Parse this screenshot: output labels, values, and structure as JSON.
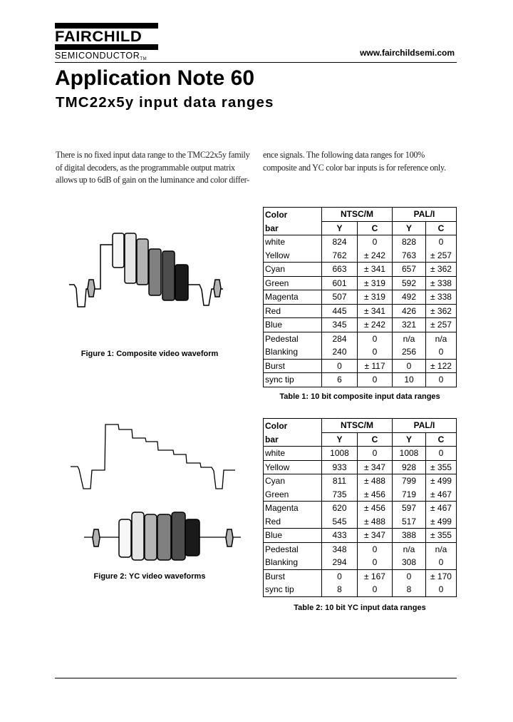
{
  "header": {
    "logo_name": "FAIRCHILD",
    "logo_sub": "SEMICONDUCTOR",
    "logo_tm": "TM",
    "url": "www.fairchildsemi.com"
  },
  "title": "Application Note 60",
  "subtitle": "TMC22x5y input data ranges",
  "paragraphs": [
    "There is no fixed input data range to the TMC22x5y family of digital decoders, as the programmable output matrix allows up to 6dB of gain on the luminance and color differ-",
    "ence signals. The following data ranges for 100% composite and YC color bar inputs is for reference only."
  ],
  "figures": [
    {
      "caption": "Figure 1: Composite video waveform"
    },
    {
      "caption": "Figure 2: YC video waveforms"
    }
  ],
  "bar_colors": [
    "#f7f7f7",
    "#e6e6e6",
    "#b3b3b3",
    "#808080",
    "#4d4d4d",
    "#1a1a1a"
  ],
  "burst_color": "#b3b3b3",
  "tables": [
    {
      "caption": "Table 1: 10 bit composite input data ranges",
      "head": {
        "col0a": "Color",
        "col0b": "bar",
        "group1": "NTSC/M",
        "group2": "PAL/I",
        "y": "Y",
        "c": "C"
      },
      "rows": [
        [
          "white",
          "824",
          "0",
          "828",
          "0"
        ],
        [
          "Yellow",
          "762",
          "± 242",
          "763",
          "± 257"
        ],
        [
          "Cyan",
          "663",
          "± 341",
          "657",
          "± 362"
        ],
        [
          "Green",
          "601",
          "± 319",
          "592",
          "± 338"
        ],
        [
          "Magenta",
          "507",
          "± 319",
          "492",
          "± 338"
        ],
        [
          "Red",
          "445",
          "± 341",
          "426",
          "± 362"
        ],
        [
          "Blue",
          "345",
          "± 242",
          "321",
          "± 257"
        ],
        [
          "Pedestal",
          "284",
          "0",
          "n/a",
          "n/a"
        ],
        [
          "Blanking",
          "240",
          "0",
          "256",
          "0"
        ],
        [
          "Burst",
          "0",
          "± 117",
          "0",
          "± 122"
        ],
        [
          "sync tip",
          "6",
          "0",
          "10",
          "0"
        ]
      ]
    },
    {
      "caption": "Table 2: 10 bit YC input data ranges",
      "head": {
        "col0a": "Color",
        "col0b": "bar",
        "group1": "NTSC/M",
        "group2": "PAL/I",
        "y": "Y",
        "c": "C"
      },
      "rows": [
        [
          "white",
          "1008",
          "0",
          "1008",
          "0"
        ],
        [
          "Yellow",
          "933",
          "± 347",
          "928",
          "± 355"
        ],
        [
          "Cyan",
          "811",
          "± 488",
          "799",
          "± 499"
        ],
        [
          "Green",
          "735",
          "± 456",
          "719",
          "± 467"
        ],
        [
          "Magenta",
          "620",
          "± 456",
          "597",
          "± 467"
        ],
        [
          "Red",
          "545",
          "± 488",
          "517",
          "± 499"
        ],
        [
          "Blue",
          "433",
          "± 347",
          "388",
          "± 355"
        ],
        [
          "Pedestal",
          "348",
          "0",
          "n/a",
          "n/a"
        ],
        [
          "Blanking",
          "294",
          "0",
          "308",
          "0"
        ],
        [
          "Burst",
          "0",
          "± 167",
          "0",
          "± 170"
        ],
        [
          "sync tip",
          "8",
          "0",
          "8",
          "0"
        ]
      ]
    }
  ]
}
